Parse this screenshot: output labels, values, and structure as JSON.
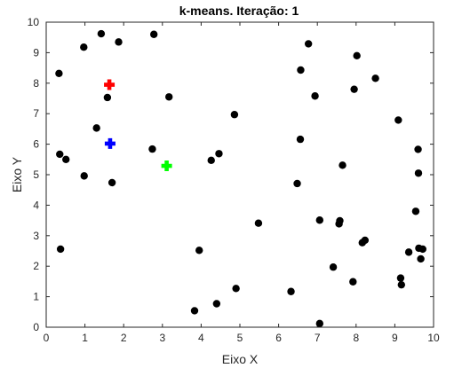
{
  "chart_data": {
    "type": "scatter",
    "title": "k-means. Iteração: 1",
    "xlabel": "Eixo X",
    "ylabel": "Eixo Y",
    "xlim": [
      0,
      10
    ],
    "ylim": [
      0,
      10
    ],
    "xticks": [
      0,
      1,
      2,
      3,
      4,
      5,
      6,
      7,
      8,
      9,
      10
    ],
    "yticks": [
      0,
      1,
      2,
      3,
      4,
      5,
      6,
      7,
      8,
      9,
      10
    ],
    "grid": false,
    "box": true,
    "series": [
      {
        "marker": "circle",
        "color": "#000000",
        "points": [
          [
            0.33,
            8.32
          ],
          [
            0.97,
            9.18
          ],
          [
            1.42,
            9.62
          ],
          [
            1.87,
            9.35
          ],
          [
            2.78,
            9.6
          ],
          [
            1.58,
            7.53
          ],
          [
            3.17,
            7.55
          ],
          [
            1.3,
            6.53
          ],
          [
            0.35,
            5.67
          ],
          [
            0.51,
            5.5
          ],
          [
            0.98,
            4.96
          ],
          [
            1.7,
            4.74
          ],
          [
            0.37,
            2.56
          ],
          [
            2.74,
            5.84
          ],
          [
            4.26,
            5.47
          ],
          [
            4.46,
            5.69
          ],
          [
            4.86,
            6.97
          ],
          [
            3.95,
            2.52
          ],
          [
            3.83,
            0.54
          ],
          [
            4.4,
            0.77
          ],
          [
            4.9,
            1.27
          ],
          [
            5.48,
            3.41
          ],
          [
            6.32,
            1.17
          ],
          [
            6.48,
            4.71
          ],
          [
            6.56,
            6.16
          ],
          [
            6.57,
            8.43
          ],
          [
            6.77,
            9.29
          ],
          [
            6.94,
            7.58
          ],
          [
            7.06,
            3.51
          ],
          [
            7.06,
            0.12
          ],
          [
            7.41,
            1.97
          ],
          [
            7.56,
            3.39
          ],
          [
            7.58,
            3.49
          ],
          [
            7.65,
            5.31
          ],
          [
            7.92,
            1.49
          ],
          [
            7.95,
            7.8
          ],
          [
            8.02,
            8.9
          ],
          [
            8.16,
            2.77
          ],
          [
            8.23,
            2.85
          ],
          [
            8.5,
            8.16
          ],
          [
            9.09,
            6.79
          ],
          [
            9.15,
            1.61
          ],
          [
            9.17,
            1.39
          ],
          [
            9.36,
            2.46
          ],
          [
            9.54,
            3.8
          ],
          [
            9.6,
            5.83
          ],
          [
            9.61,
            5.05
          ],
          [
            9.62,
            2.59
          ],
          [
            9.67,
            2.24
          ],
          [
            9.72,
            2.56
          ]
        ]
      },
      {
        "marker": "cross",
        "color": "#ff0000",
        "points": [
          [
            1.63,
            7.95
          ]
        ]
      },
      {
        "marker": "cross",
        "color": "#0000ff",
        "points": [
          [
            1.65,
            6.02
          ]
        ]
      },
      {
        "marker": "cross",
        "color": "#00ff00",
        "points": [
          [
            3.11,
            5.29
          ]
        ]
      }
    ]
  }
}
